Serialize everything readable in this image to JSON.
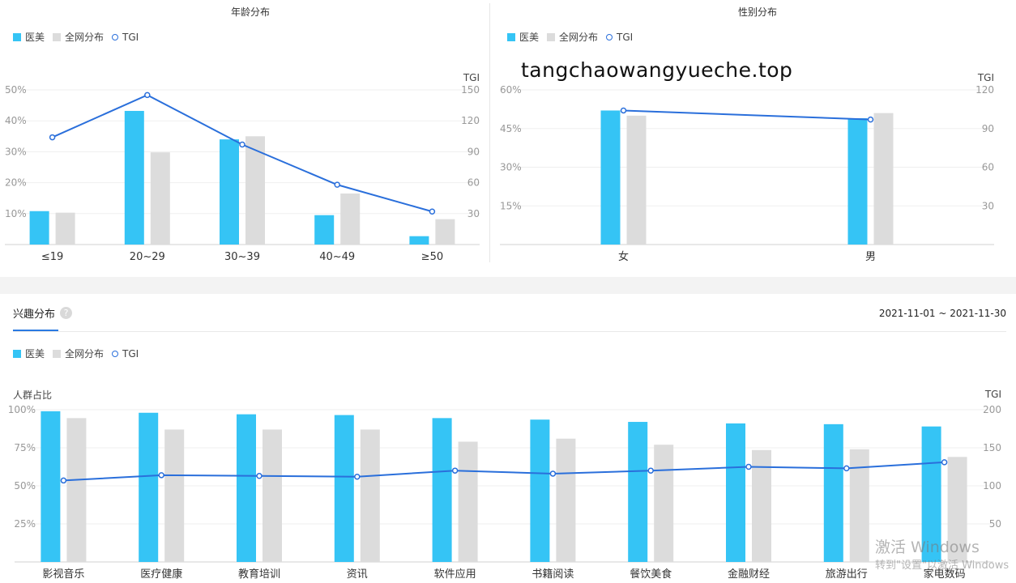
{
  "legend": {
    "series1": "医美",
    "series2": "全网分布",
    "series3": "TGI"
  },
  "colors": {
    "series1": "#35c4f5",
    "series2": "#dcdcdc",
    "tgi": "#2a6fdb"
  },
  "watermark": "tangchaowangyueche.top",
  "interest_section": {
    "tab_label": "兴趣分布",
    "help_icon": "question-icon",
    "date_range": "2021-11-01 ~ 2021-11-30"
  },
  "os_watermark": {
    "line1": "激活 Windows",
    "line2": "转到\"设置\"以激活 Windows"
  },
  "chart_data": [
    {
      "type": "bar",
      "title": "年龄分布",
      "categories": [
        "≤19",
        "20~29",
        "30~39",
        "40~49",
        "≥50"
      ],
      "series": [
        {
          "name": "医美",
          "values": [
            10.8,
            43.2,
            34.0,
            9.5,
            2.7
          ]
        },
        {
          "name": "全网分布",
          "values": [
            10.3,
            29.8,
            35.0,
            16.5,
            8.2
          ]
        },
        {
          "name": "TGI",
          "axis": "right",
          "kind": "line",
          "values": [
            104,
            145,
            97,
            58,
            32
          ]
        }
      ],
      "ylabel": "",
      "y2label": "TGI",
      "ylim": [
        0,
        50
      ],
      "y2lim": [
        0,
        150
      ],
      "yticks": [
        "10%",
        "20%",
        "30%",
        "40%",
        "50%"
      ],
      "y2ticks": [
        "30",
        "60",
        "90",
        "120",
        "150"
      ],
      "grid": true
    },
    {
      "type": "bar",
      "title": "性别分布",
      "categories": [
        "女",
        "男"
      ],
      "series": [
        {
          "name": "医美",
          "values": [
            52,
            49
          ]
        },
        {
          "name": "全网分布",
          "values": [
            50,
            51
          ]
        },
        {
          "name": "TGI",
          "axis": "right",
          "kind": "line",
          "values": [
            104,
            97
          ]
        }
      ],
      "ylabel": "",
      "y2label": "TGI",
      "ylim": [
        0,
        60
      ],
      "y2lim": [
        0,
        120
      ],
      "yticks": [
        "15%",
        "30%",
        "45%",
        "60%"
      ],
      "y2ticks": [
        "30",
        "60",
        "90",
        "120"
      ],
      "grid": true
    },
    {
      "type": "bar",
      "title": "",
      "categories": [
        "影视音乐",
        "医疗健康",
        "教育培训",
        "资讯",
        "软件应用",
        "书籍阅读",
        "餐饮美食",
        "金融财经",
        "旅游出行",
        "家电数码"
      ],
      "series": [
        {
          "name": "医美",
          "values": [
            99,
            98,
            97,
            96.5,
            94.5,
            93.5,
            92,
            91,
            90.5,
            89
          ]
        },
        {
          "name": "全网分布",
          "values": [
            94.5,
            87,
            87,
            87,
            79,
            81,
            77,
            73.5,
            74,
            69
          ]
        },
        {
          "name": "TGI",
          "axis": "right",
          "kind": "line",
          "values": [
            107,
            114,
            113,
            112,
            120,
            116,
            120,
            125,
            123,
            131
          ]
        }
      ],
      "ylabel": "人群占比",
      "y2label": "TGI",
      "ylim": [
        0,
        100
      ],
      "y2lim": [
        0,
        200
      ],
      "yticks": [
        "25%",
        "50%",
        "75%",
        "100%"
      ],
      "y2ticks": [
        "50",
        "100",
        "150",
        "200"
      ],
      "grid": true
    }
  ]
}
